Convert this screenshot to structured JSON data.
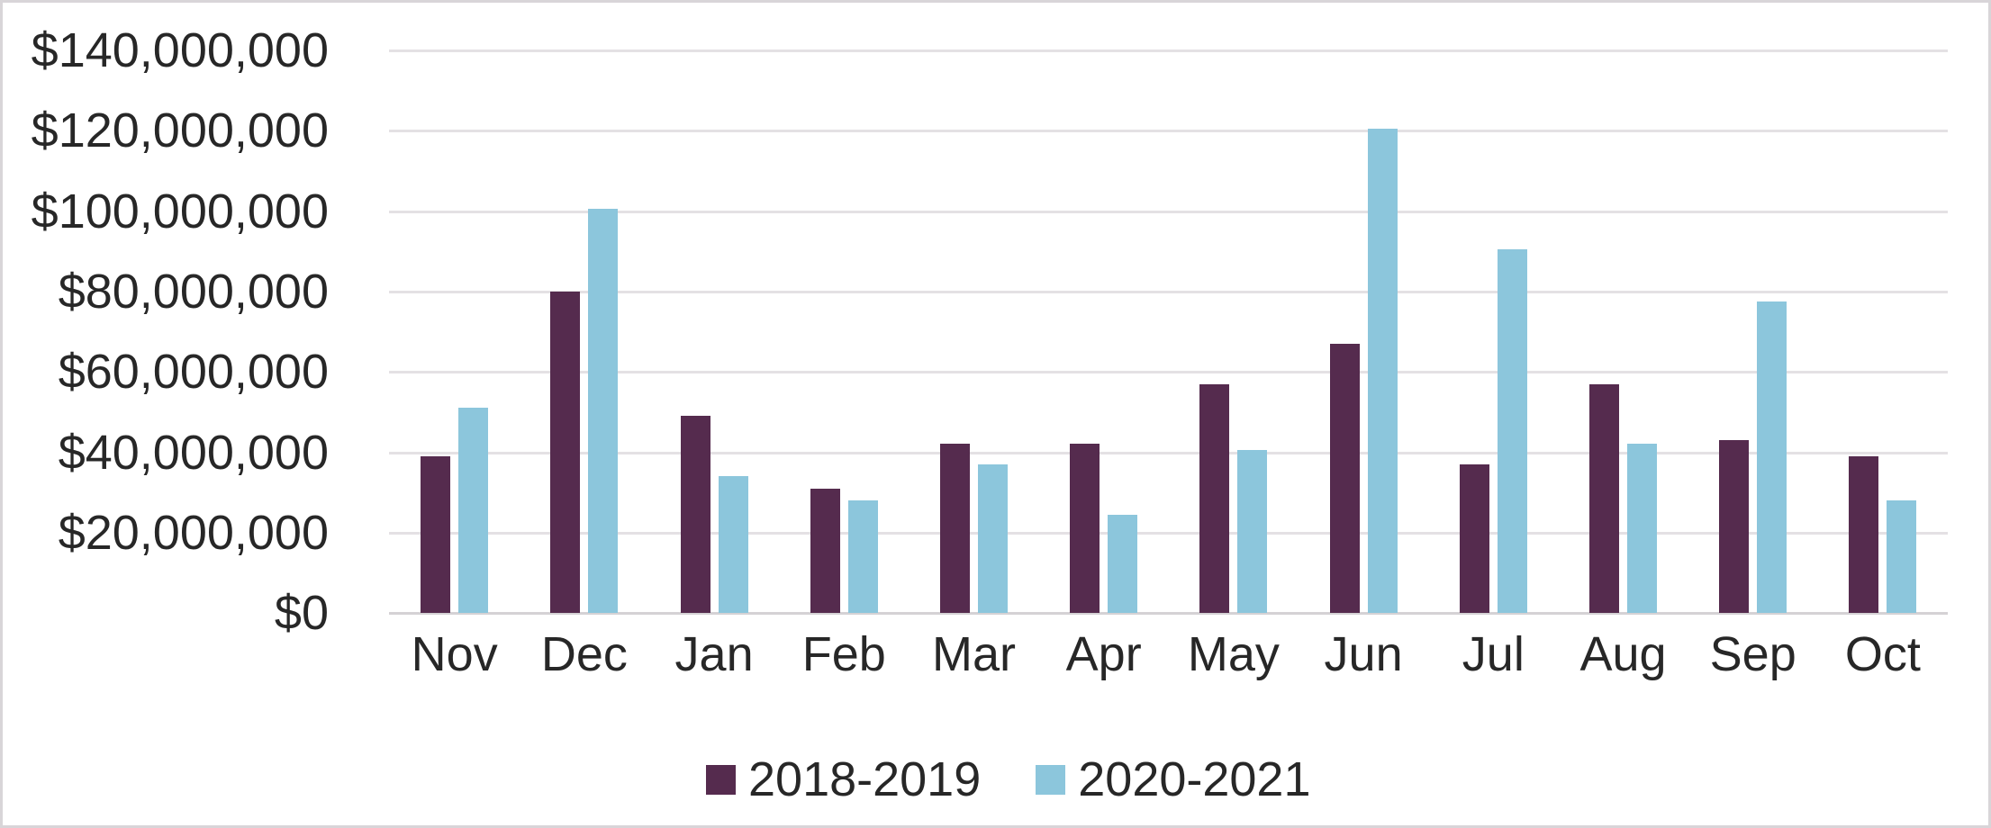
{
  "chart_data": {
    "type": "bar",
    "title": "",
    "xlabel": "",
    "ylabel": "",
    "categories": [
      "Nov",
      "Dec",
      "Jan",
      "Feb",
      "Mar",
      "Apr",
      "May",
      "Jun",
      "Jul",
      "Aug",
      "Sep",
      "Oct"
    ],
    "series": [
      {
        "name": "2018-2019",
        "color": "#552B4E",
        "values": [
          39000000,
          80000000,
          49000000,
          31000000,
          42000000,
          42000000,
          57000000,
          67000000,
          37000000,
          57000000,
          43000000,
          39000000
        ]
      },
      {
        "name": "2020-2021",
        "color": "#8CC6DC",
        "values": [
          51000000,
          100500000,
          34000000,
          28000000,
          37000000,
          24500000,
          40500000,
          120500000,
          90500000,
          42000000,
          77500000,
          28000000
        ]
      }
    ],
    "y_axis": {
      "min": 0,
      "max": 140000000,
      "tick_step": 20000000,
      "tick_labels_top_to_bottom": [
        "$140,000,000",
        "$120,000,000",
        "$100,000,000",
        "$80,000,000",
        "$60,000,000",
        "$40,000,000",
        "$20,000,000",
        "$0"
      ]
    },
    "grid": true,
    "legend_position": "bottom"
  },
  "colors": {
    "background": "#ffffff",
    "frame_border": "#d8d5d8",
    "gridline": "#e4e1e4",
    "axis_line": "#d5d2d5",
    "text": "#272727",
    "series_2018_2019": "#552B4E",
    "series_2020_2021": "#8CC6DC"
  }
}
